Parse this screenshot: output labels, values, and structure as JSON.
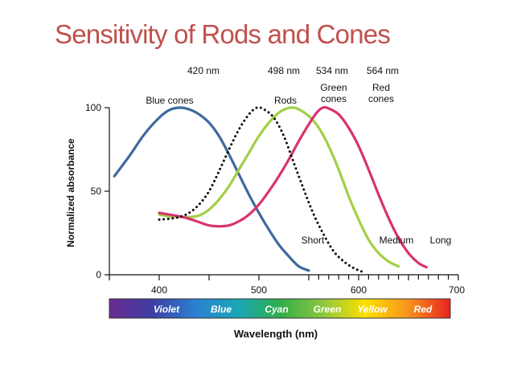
{
  "slide": {
    "title": "Sensitivity of Rods and Cones",
    "title_color": "#c0504d"
  },
  "chart_data": {
    "type": "line",
    "title": "Sensitivity of Rods and Cones",
    "xlabel": "Wavelength (nm)",
    "ylabel": "Normalized absorbance",
    "xlim": [
      350,
      700
    ],
    "ylim": [
      0,
      100
    ],
    "x_ticks": [
      400,
      500,
      600,
      700
    ],
    "y_ticks": [
      0,
      50,
      100
    ],
    "grid": false,
    "peak_labels": [
      "420 nm",
      "498 nm",
      "534 nm",
      "564 nm"
    ],
    "series": [
      {
        "name": "Blue cones",
        "label_lines": [
          "Blue cones"
        ],
        "end_label": "Short",
        "color": "#3d6a9e",
        "dash": "solid",
        "peak_nm": 420,
        "points": [
          [
            355,
            59
          ],
          [
            370,
            71
          ],
          [
            385,
            84
          ],
          [
            400,
            94
          ],
          [
            410,
            98.5
          ],
          [
            420,
            100
          ],
          [
            430,
            99
          ],
          [
            440,
            96
          ],
          [
            450,
            91
          ],
          [
            460,
            83
          ],
          [
            470,
            72
          ],
          [
            480,
            60
          ],
          [
            490,
            48
          ],
          [
            500,
            37
          ],
          [
            510,
            27
          ],
          [
            520,
            18
          ],
          [
            530,
            11
          ],
          [
            540,
            5
          ],
          [
            550,
            2.5
          ]
        ]
      },
      {
        "name": "Rods",
        "label_lines": [
          "Rods"
        ],
        "end_label": "",
        "color": "#111111",
        "dash": "dots",
        "peak_nm": 498,
        "points": [
          [
            400,
            33
          ],
          [
            410,
            33.5
          ],
          [
            420,
            34.5
          ],
          [
            430,
            37
          ],
          [
            440,
            42
          ],
          [
            450,
            50
          ],
          [
            460,
            62
          ],
          [
            470,
            75
          ],
          [
            480,
            87
          ],
          [
            490,
            96
          ],
          [
            498,
            100
          ],
          [
            505,
            99
          ],
          [
            515,
            94
          ],
          [
            525,
            83
          ],
          [
            535,
            67
          ],
          [
            545,
            51
          ],
          [
            555,
            36
          ],
          [
            565,
            24
          ],
          [
            575,
            14
          ],
          [
            585,
            8
          ],
          [
            595,
            4
          ],
          [
            605,
            1.5
          ]
        ]
      },
      {
        "name": "Green cones",
        "label_lines": [
          "Green",
          "cones"
        ],
        "end_label": "Medium",
        "color": "#a3cf45",
        "dash": "solid",
        "peak_nm": 534,
        "points": [
          [
            400,
            36
          ],
          [
            410,
            35
          ],
          [
            420,
            34.5
          ],
          [
            430,
            34.5
          ],
          [
            440,
            35.5
          ],
          [
            450,
            39
          ],
          [
            460,
            45
          ],
          [
            470,
            53
          ],
          [
            480,
            63
          ],
          [
            490,
            73
          ],
          [
            500,
            83
          ],
          [
            510,
            91
          ],
          [
            520,
            97
          ],
          [
            528,
            99.5
          ],
          [
            534,
            100
          ],
          [
            540,
            99
          ],
          [
            550,
            95
          ],
          [
            560,
            88
          ],
          [
            570,
            77
          ],
          [
            580,
            63
          ],
          [
            590,
            47
          ],
          [
            600,
            33
          ],
          [
            610,
            21
          ],
          [
            620,
            13
          ],
          [
            630,
            8
          ],
          [
            640,
            5
          ]
        ]
      },
      {
        "name": "Red cones",
        "label_lines": [
          "Red",
          "cones"
        ],
        "end_label": "Long",
        "color": "#d9336f",
        "dash": "solid",
        "peak_nm": 564,
        "points": [
          [
            400,
            37
          ],
          [
            410,
            36
          ],
          [
            420,
            35
          ],
          [
            430,
            33.5
          ],
          [
            440,
            31.5
          ],
          [
            450,
            29.5
          ],
          [
            460,
            29
          ],
          [
            470,
            29.5
          ],
          [
            480,
            32
          ],
          [
            490,
            36
          ],
          [
            500,
            42
          ],
          [
            510,
            50
          ],
          [
            520,
            59
          ],
          [
            530,
            69
          ],
          [
            540,
            80
          ],
          [
            550,
            90
          ],
          [
            558,
            97
          ],
          [
            564,
            100
          ],
          [
            570,
            99.5
          ],
          [
            580,
            96
          ],
          [
            590,
            88
          ],
          [
            600,
            77
          ],
          [
            610,
            63
          ],
          [
            620,
            48
          ],
          [
            630,
            34
          ],
          [
            640,
            22
          ],
          [
            650,
            13
          ],
          [
            660,
            7
          ],
          [
            668,
            4.5
          ]
        ]
      }
    ],
    "spectrum_bar": {
      "labels": [
        "Violet",
        "Blue",
        "Cyan",
        "Green",
        "Yellow",
        "Red"
      ],
      "colors": [
        "#6a2b8f",
        "#3e3ea3",
        "#2b7fd1",
        "#1aa6b7",
        "#2fae4a",
        "#8dc63f",
        "#ffe000",
        "#f7941d",
        "#e8231f"
      ]
    }
  }
}
